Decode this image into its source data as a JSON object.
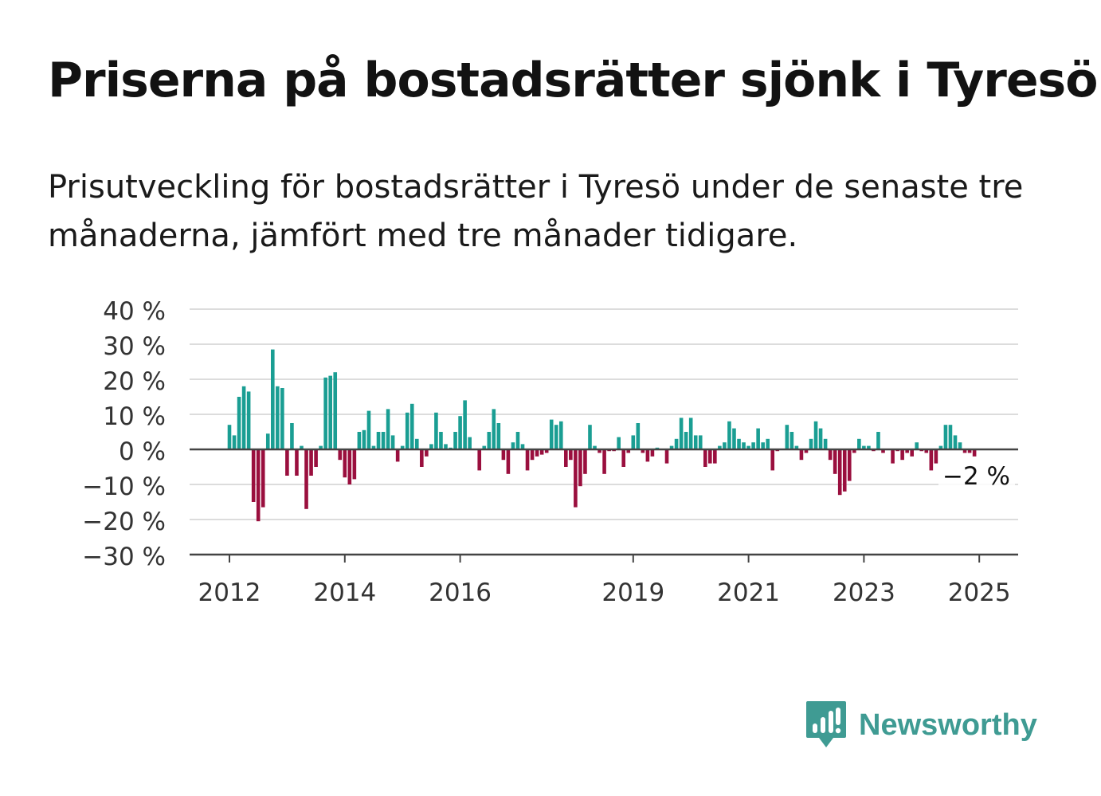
{
  "title": "Priserna på bostadsrätter sjönk i Tyresö",
  "subtitle": "Prisutveckling för bostadsrätter i Tyresö under de senaste tre månaderna, jämfört med tre månader tidigare.",
  "brand": {
    "name": "Newsworthy",
    "color": "#3f9b93"
  },
  "chart_data": {
    "type": "bar",
    "title": "",
    "xlabel": "",
    "ylabel": "",
    "ylim": [
      -30,
      40
    ],
    "yticks": [
      40,
      30,
      20,
      10,
      0,
      -10,
      -20,
      -30
    ],
    "ytick_labels": [
      "40 %",
      "30 %",
      "20 %",
      "10 %",
      "0 %",
      "−10 %",
      "−20 %",
      "−30 %"
    ],
    "xtick_labels": [
      "2012",
      "2014",
      "2016",
      "2019",
      "2021",
      "2023",
      "2025"
    ],
    "xticks": [
      2012.0,
      2014.0,
      2016.0,
      2019.0,
      2021.0,
      2023.0,
      2025.0
    ],
    "x_start": 2012.0,
    "x_step": 0.08333,
    "grid": true,
    "positive_color": "#1a9e93",
    "negative_color": "#9a0f3e",
    "annotation": {
      "text": "−2 %",
      "value": -2
    },
    "values": [
      7,
      4,
      15,
      18,
      16.5,
      -15,
      -20.5,
      -16.5,
      4.5,
      28.5,
      18,
      17.5,
      -7.5,
      7.5,
      -7.5,
      1,
      -17,
      -7.5,
      -5,
      1,
      20.5,
      21,
      22,
      -3,
      -8,
      -10,
      -8.5,
      5,
      5.5,
      11,
      1,
      5,
      5,
      11.5,
      4,
      -3.5,
      1,
      10.5,
      13,
      3,
      -5,
      -2,
      1.5,
      10.5,
      5,
      1.5,
      0.5,
      5,
      9.5,
      14,
      3.5,
      0,
      -6,
      1,
      5,
      11.5,
      7.5,
      -3,
      -7,
      2,
      5,
      1.5,
      -6,
      -3,
      -2,
      -1.5,
      -1,
      8.5,
      7,
      8,
      -5,
      -3,
      -16.5,
      -10.5,
      -7,
      7,
      1,
      -1,
      -7,
      -0.5,
      -0.5,
      3.5,
      -5,
      -1,
      4,
      7.5,
      -1,
      -3.5,
      -2,
      0.5,
      0,
      -4,
      1,
      3,
      9,
      5,
      9,
      4,
      4,
      -5,
      -4,
      -4,
      1,
      2,
      8,
      6,
      3,
      2,
      1,
      2,
      6,
      2,
      3,
      -6,
      -0.5,
      0,
      7,
      5,
      1,
      -3,
      -1,
      3,
      8,
      6,
      3,
      -3,
      -7,
      -13,
      -12,
      -9,
      -1,
      3,
      1,
      1,
      -0.5,
      5,
      -1,
      0,
      -4,
      -0.5,
      -3,
      -1,
      -2,
      2,
      -0.5,
      -1,
      -6,
      -4,
      1,
      7,
      7,
      4,
      2,
      -1,
      -1,
      -2
    ]
  }
}
